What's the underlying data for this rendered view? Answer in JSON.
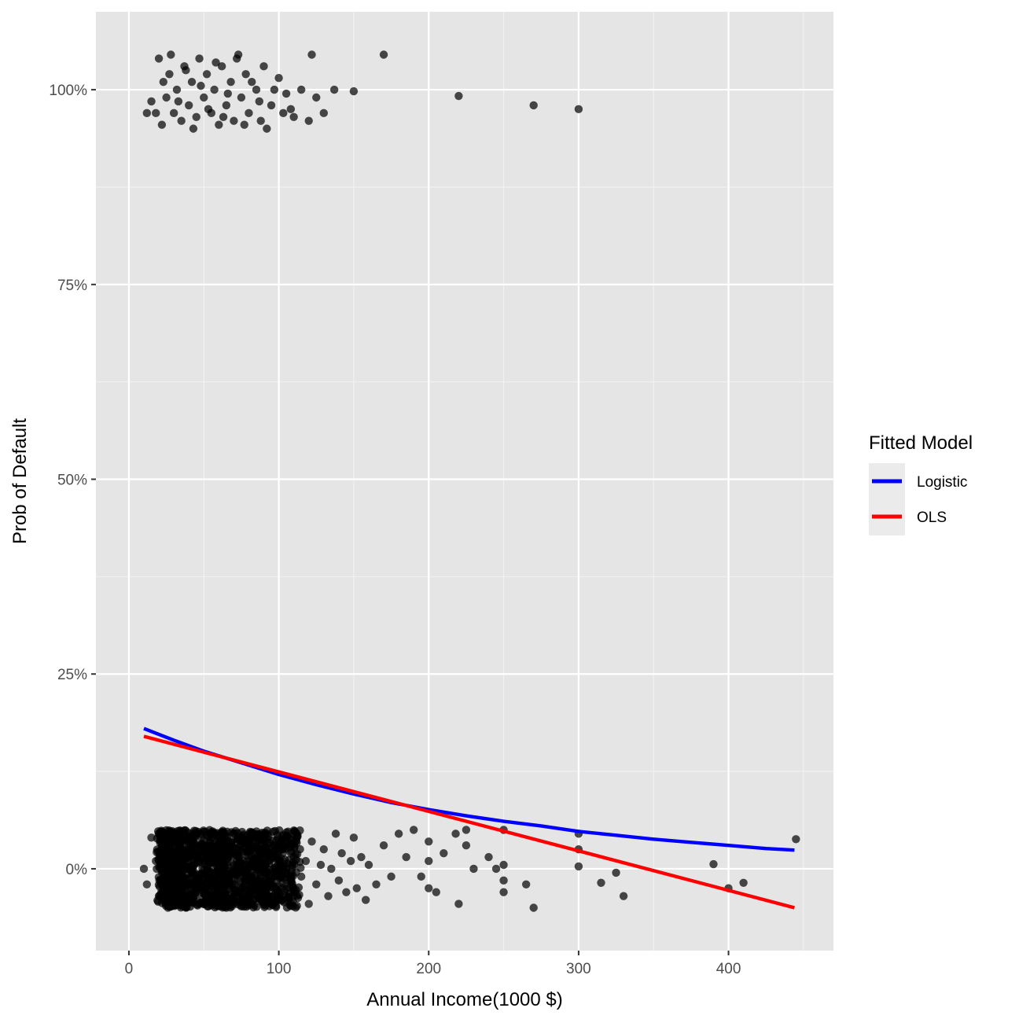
{
  "chart_data": {
    "type": "scatter",
    "title": "",
    "xlabel": "Annual Income(1000 $)",
    "ylabel": "Prob of Default",
    "xlim": [
      -22,
      470
    ],
    "ylim": [
      -0.105,
      1.1
    ],
    "x_ticks": [
      0,
      100,
      200,
      300,
      400
    ],
    "x_tick_labels": [
      "0",
      "100",
      "200",
      "300",
      "400"
    ],
    "y_ticks": [
      0,
      0.25,
      0.5,
      0.75,
      1.0
    ],
    "y_tick_labels": [
      "0%",
      "25%",
      "50%",
      "75%",
      "100%"
    ],
    "grid": true,
    "legend": {
      "title": "Fitted Model",
      "position": "right",
      "entries": [
        {
          "label": "Logistic",
          "color": "#0000ff"
        },
        {
          "label": "OLS",
          "color": "#ff0000"
        }
      ]
    },
    "points_color": "#000000",
    "points_note_jitter": true,
    "defaulted_points": [
      [
        20,
        1.04
      ],
      [
        23,
        1.01
      ],
      [
        25,
        0.99
      ],
      [
        27,
        1.02
      ],
      [
        30,
        0.97
      ],
      [
        32,
        1.0
      ],
      [
        35,
        0.96
      ],
      [
        37,
        1.03
      ],
      [
        40,
        0.98
      ],
      [
        42,
        1.01
      ],
      [
        45,
        0.965
      ],
      [
        47,
        1.04
      ],
      [
        50,
        0.99
      ],
      [
        52,
        1.02
      ],
      [
        55,
        0.97
      ],
      [
        57,
        1.0
      ],
      [
        60,
        0.955
      ],
      [
        62,
        1.03
      ],
      [
        65,
        0.98
      ],
      [
        68,
        1.01
      ],
      [
        70,
        0.96
      ],
      [
        72,
        1.04
      ],
      [
        75,
        0.99
      ],
      [
        78,
        1.02
      ],
      [
        80,
        0.97
      ],
      [
        85,
        1.0
      ],
      [
        88,
        0.96
      ],
      [
        90,
        1.03
      ],
      [
        95,
        0.98
      ],
      [
        100,
        1.015
      ],
      [
        18,
        0.97
      ],
      [
        22,
        0.955
      ],
      [
        28,
        1.045
      ],
      [
        33,
        0.985
      ],
      [
        38,
        1.025
      ],
      [
        43,
        0.95
      ],
      [
        48,
        1.005
      ],
      [
        53,
        0.975
      ],
      [
        58,
        1.035
      ],
      [
        63,
        0.965
      ],
      [
        66,
        0.995
      ],
      [
        73,
        1.045
      ],
      [
        77,
        0.955
      ],
      [
        82,
        1.01
      ],
      [
        87,
        0.985
      ],
      [
        92,
        0.95
      ],
      [
        97,
        1.0
      ],
      [
        103,
        0.97
      ],
      [
        105,
        0.995
      ],
      [
        108,
        0.975
      ],
      [
        110,
        0.965
      ],
      [
        115,
        1.0
      ],
      [
        120,
        0.96
      ],
      [
        122,
        1.045
      ],
      [
        125,
        0.99
      ],
      [
        130,
        0.97
      ],
      [
        137,
        1.0
      ],
      [
        150,
        0.998
      ],
      [
        170,
        1.045
      ],
      [
        220,
        0.992
      ],
      [
        270,
        0.98
      ],
      [
        300,
        0.975
      ],
      [
        15,
        0.985
      ],
      [
        12,
        0.97
      ]
    ],
    "non_defaulted_points": [
      [
        10,
        0.0
      ],
      [
        12,
        -0.02
      ],
      [
        15,
        0.04
      ],
      [
        18,
        0.01
      ],
      [
        20,
        -0.035
      ],
      [
        22,
        0.03
      ],
      [
        25,
        -0.01
      ],
      [
        27,
        0.02
      ],
      [
        30,
        -0.04
      ],
      [
        32,
        0.0
      ],
      [
        35,
        0.035
      ],
      [
        37,
        -0.025
      ],
      [
        40,
        0.015
      ],
      [
        42,
        -0.005
      ],
      [
        45,
        0.045
      ],
      [
        47,
        -0.045
      ],
      [
        50,
        0.01
      ],
      [
        52,
        -0.02
      ],
      [
        55,
        0.03
      ],
      [
        57,
        -0.03
      ],
      [
        60,
        0.0
      ],
      [
        62,
        0.04
      ],
      [
        65,
        -0.015
      ],
      [
        67,
        0.02
      ],
      [
        70,
        -0.04
      ],
      [
        72,
        0.01
      ],
      [
        75,
        0.035
      ],
      [
        77,
        -0.025
      ],
      [
        80,
        0.005
      ],
      [
        82,
        -0.045
      ],
      [
        85,
        0.025
      ],
      [
        87,
        -0.01
      ],
      [
        90,
        0.045
      ],
      [
        92,
        -0.035
      ],
      [
        95,
        0.015
      ],
      [
        97,
        -0.02
      ],
      [
        100,
        0.03
      ],
      [
        102,
        -0.04
      ],
      [
        105,
        0.0
      ],
      [
        108,
        0.02
      ],
      [
        110,
        -0.03
      ],
      [
        112,
        0.04
      ],
      [
        115,
        -0.01
      ],
      [
        118,
        0.01
      ],
      [
        120,
        -0.045
      ],
      [
        122,
        0.035
      ],
      [
        125,
        -0.02
      ],
      [
        128,
        0.005
      ],
      [
        130,
        0.025
      ],
      [
        133,
        -0.035
      ],
      [
        135,
        0.0
      ],
      [
        138,
        0.045
      ],
      [
        140,
        -0.015
      ],
      [
        142,
        0.02
      ],
      [
        145,
        -0.03
      ],
      [
        148,
        0.01
      ],
      [
        150,
        0.04
      ],
      [
        152,
        -0.025
      ],
      [
        155,
        0.015
      ],
      [
        158,
        -0.04
      ],
      [
        160,
        0.005
      ],
      [
        165,
        -0.02
      ],
      [
        170,
        0.03
      ],
      [
        175,
        -0.01
      ],
      [
        180,
        0.045
      ],
      [
        185,
        0.015
      ],
      [
        190,
        0.05
      ],
      [
        195,
        -0.01
      ],
      [
        200,
        0.035
      ],
      [
        200,
        -0.025
      ],
      [
        200,
        0.01
      ],
      [
        205,
        -0.03
      ],
      [
        210,
        0.02
      ],
      [
        218,
        0.045
      ],
      [
        220,
        -0.045
      ],
      [
        225,
        0.03
      ],
      [
        225,
        0.05
      ],
      [
        230,
        0.0
      ],
      [
        240,
        0.015
      ],
      [
        245,
        0.0
      ],
      [
        250,
        0.05
      ],
      [
        250,
        -0.015
      ],
      [
        250,
        -0.03
      ],
      [
        250,
        0.005
      ],
      [
        265,
        -0.02
      ],
      [
        270,
        -0.05
      ],
      [
        300,
        0.045
      ],
      [
        300,
        0.025
      ],
      [
        300,
        0.003
      ],
      [
        315,
        -0.018
      ],
      [
        325,
        -0.005
      ],
      [
        330,
        -0.035
      ],
      [
        390,
        0.006
      ],
      [
        400,
        -0.025
      ],
      [
        410,
        -0.018
      ],
      [
        445,
        0.038
      ]
    ],
    "series": [
      {
        "name": "Logistic",
        "color": "#0000ff",
        "x": [
          10,
          30,
          50,
          75,
          100,
          125,
          150,
          175,
          200,
          225,
          250,
          275,
          300,
          325,
          350,
          375,
          400,
          425,
          444
        ],
        "y": [
          0.18,
          0.165,
          0.151,
          0.136,
          0.121,
          0.108,
          0.096,
          0.085,
          0.076,
          0.068,
          0.061,
          0.055,
          0.048,
          0.043,
          0.038,
          0.034,
          0.03,
          0.026,
          0.024
        ]
      },
      {
        "name": "OLS",
        "color": "#ff0000",
        "x": [
          10,
          444
        ],
        "y": [
          0.17,
          -0.05
        ]
      }
    ]
  }
}
